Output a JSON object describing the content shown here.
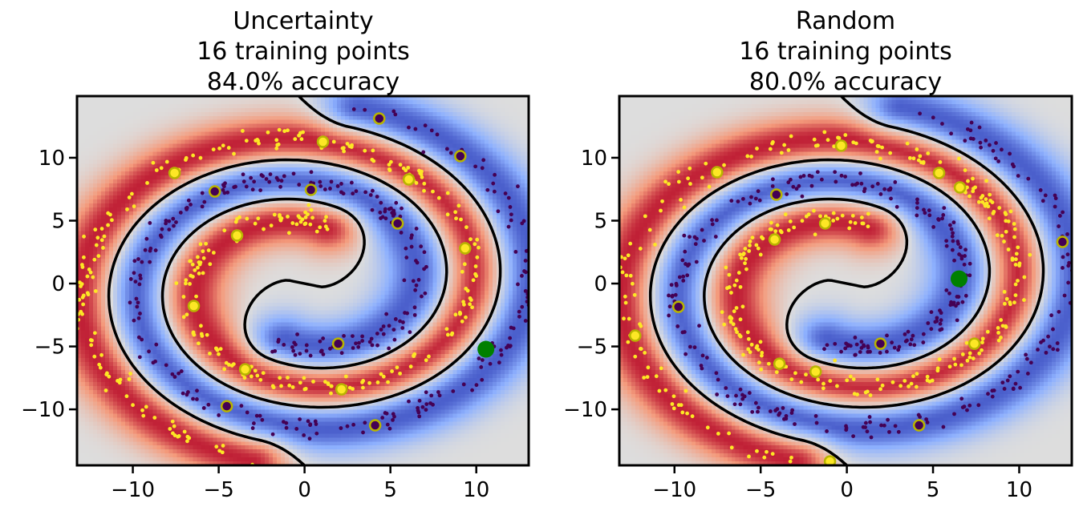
{
  "chart_data": [
    {
      "type": "scatter",
      "title_lines": [
        "Uncertainty",
        "16 training points",
        "84.0% accuracy"
      ],
      "xlim": [
        -13.25,
        13.05
      ],
      "ylim": [
        -14.45,
        14.9
      ],
      "xticks": [
        -10,
        -5,
        0,
        5,
        10
      ],
      "yticks": [
        -10,
        -5,
        0,
        5,
        10
      ],
      "xtick_labels": [
        "−10",
        "−5",
        "0",
        "5",
        "10"
      ],
      "ytick_labels": [
        "−10",
        "−5",
        "0",
        "5",
        "10"
      ],
      "grid": false,
      "background": "class probability heatmap (coolwarm) with black decision boundary",
      "training_points": {
        "class_1": [
          [
            -7.57,
            8.79
          ],
          [
            1.07,
            11.27
          ],
          [
            6.07,
            8.28
          ],
          [
            -3.93,
            3.82
          ],
          [
            9.35,
            2.8
          ],
          [
            -6.45,
            -1.78
          ],
          [
            -3.46,
            -6.82
          ],
          [
            2.15,
            -8.41
          ]
        ],
        "class_0": [
          [
            4.35,
            13.12
          ],
          [
            9.07,
            10.13
          ],
          [
            -5.23,
            7.32
          ],
          [
            0.37,
            7.45
          ],
          [
            5.42,
            4.78
          ],
          [
            1.96,
            -4.78
          ],
          [
            -4.53,
            -9.75
          ],
          [
            4.11,
            -11.27
          ]
        ]
      },
      "query_point": [
        10.56,
        -5.22
      ]
    },
    {
      "type": "scatter",
      "title_lines": [
        "Random",
        "16 training points",
        "80.0% accuracy"
      ],
      "xlim": [
        -13.2,
        13.05
      ],
      "ylim": [
        -14.45,
        14.9
      ],
      "xticks": [
        -10,
        -5,
        0,
        5,
        10
      ],
      "yticks": [
        -10,
        -5,
        0,
        5,
        10
      ],
      "xtick_labels": [
        "−10",
        "−5",
        "0",
        "5",
        "10"
      ],
      "ytick_labels": [
        "−10",
        "−5",
        "0",
        "5",
        "10"
      ],
      "grid": false,
      "background": "class probability heatmap (coolwarm) with black decision boundary",
      "training_points": {
        "class_1": [
          [
            -7.53,
            8.85
          ],
          [
            -0.33,
            10.96
          ],
          [
            5.35,
            8.79
          ],
          [
            6.56,
            7.64
          ],
          [
            -4.19,
            3.5
          ],
          [
            -1.26,
            4.78
          ],
          [
            -12.28,
            -4.14
          ],
          [
            -3.91,
            -6.37
          ],
          [
            -1.81,
            -7.0
          ],
          [
            7.4,
            -4.78
          ],
          [
            -0.98,
            -14.14
          ]
        ],
        "class_0": [
          [
            -4.09,
            7.07
          ],
          [
            -9.77,
            -1.85
          ],
          [
            1.95,
            -4.78
          ],
          [
            4.19,
            -11.27
          ],
          [
            12.51,
            3.31
          ]
        ]
      },
      "query_point": [
        6.51,
        0.38
      ]
    }
  ],
  "colors": {
    "class_1": "#fde725",
    "class_0": "#440154",
    "training_edge": "#b8b400",
    "query": "#008000",
    "boundary": "#000000"
  }
}
